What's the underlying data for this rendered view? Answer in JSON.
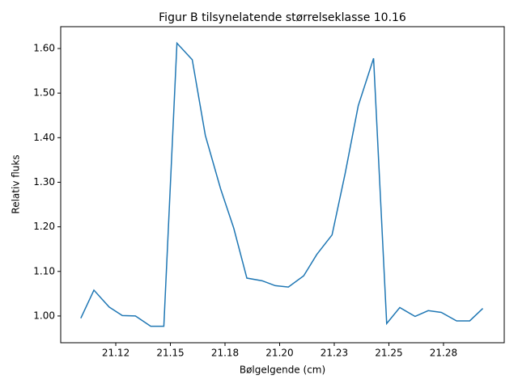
{
  "chart_data": {
    "type": "line",
    "title": "Figur B tilsynelatende størrelseklasse 10.16",
    "x_label": "Bølgelgende (cm)",
    "y_label": "Relativ fluks",
    "x": [
      21.109,
      21.115,
      21.122,
      21.128,
      21.134,
      21.141,
      21.147,
      21.153,
      21.16,
      21.166,
      21.173,
      21.179,
      21.185,
      21.192,
      21.198,
      21.204,
      21.211,
      21.217,
      21.224,
      21.23,
      21.236,
      21.243,
      21.249,
      21.255,
      21.262,
      21.268,
      21.274,
      21.281,
      21.287,
      21.293
    ],
    "series": [
      {
        "name": "Relativ fluks",
        "color": "#1f77b4",
        "values": [
          0.995,
          1.058,
          1.02,
          1.001,
          1.0,
          0.977,
          0.977,
          1.612,
          1.575,
          1.405,
          1.285,
          1.197,
          1.085,
          1.079,
          1.068,
          1.065,
          1.09,
          1.138,
          1.182,
          1.32,
          1.472,
          1.578,
          0.983,
          1.019,
          0.999,
          1.012,
          1.008,
          0.989,
          0.989,
          1.017
        ]
      }
    ],
    "xlim": [
      21.0998,
      21.3028
    ],
    "ylim": [
      0.94,
      1.649
    ],
    "xticks": [
      {
        "value": 21.125,
        "label": "21.12"
      },
      {
        "value": 21.15,
        "label": "21.15"
      },
      {
        "value": 21.175,
        "label": "21.18"
      },
      {
        "value": 21.2,
        "label": "21.20"
      },
      {
        "value": 21.225,
        "label": "21.23"
      },
      {
        "value": 21.25,
        "label": "21.25"
      },
      {
        "value": 21.275,
        "label": "21.28"
      }
    ],
    "yticks": [
      {
        "value": 1.0,
        "label": "1.00"
      },
      {
        "value": 1.1,
        "label": "1.10"
      },
      {
        "value": 1.2,
        "label": "1.20"
      },
      {
        "value": 1.3,
        "label": "1.30"
      },
      {
        "value": 1.4,
        "label": "1.40"
      },
      {
        "value": 1.5,
        "label": "1.50"
      },
      {
        "value": 1.6,
        "label": "1.60"
      }
    ],
    "grid": false
  }
}
